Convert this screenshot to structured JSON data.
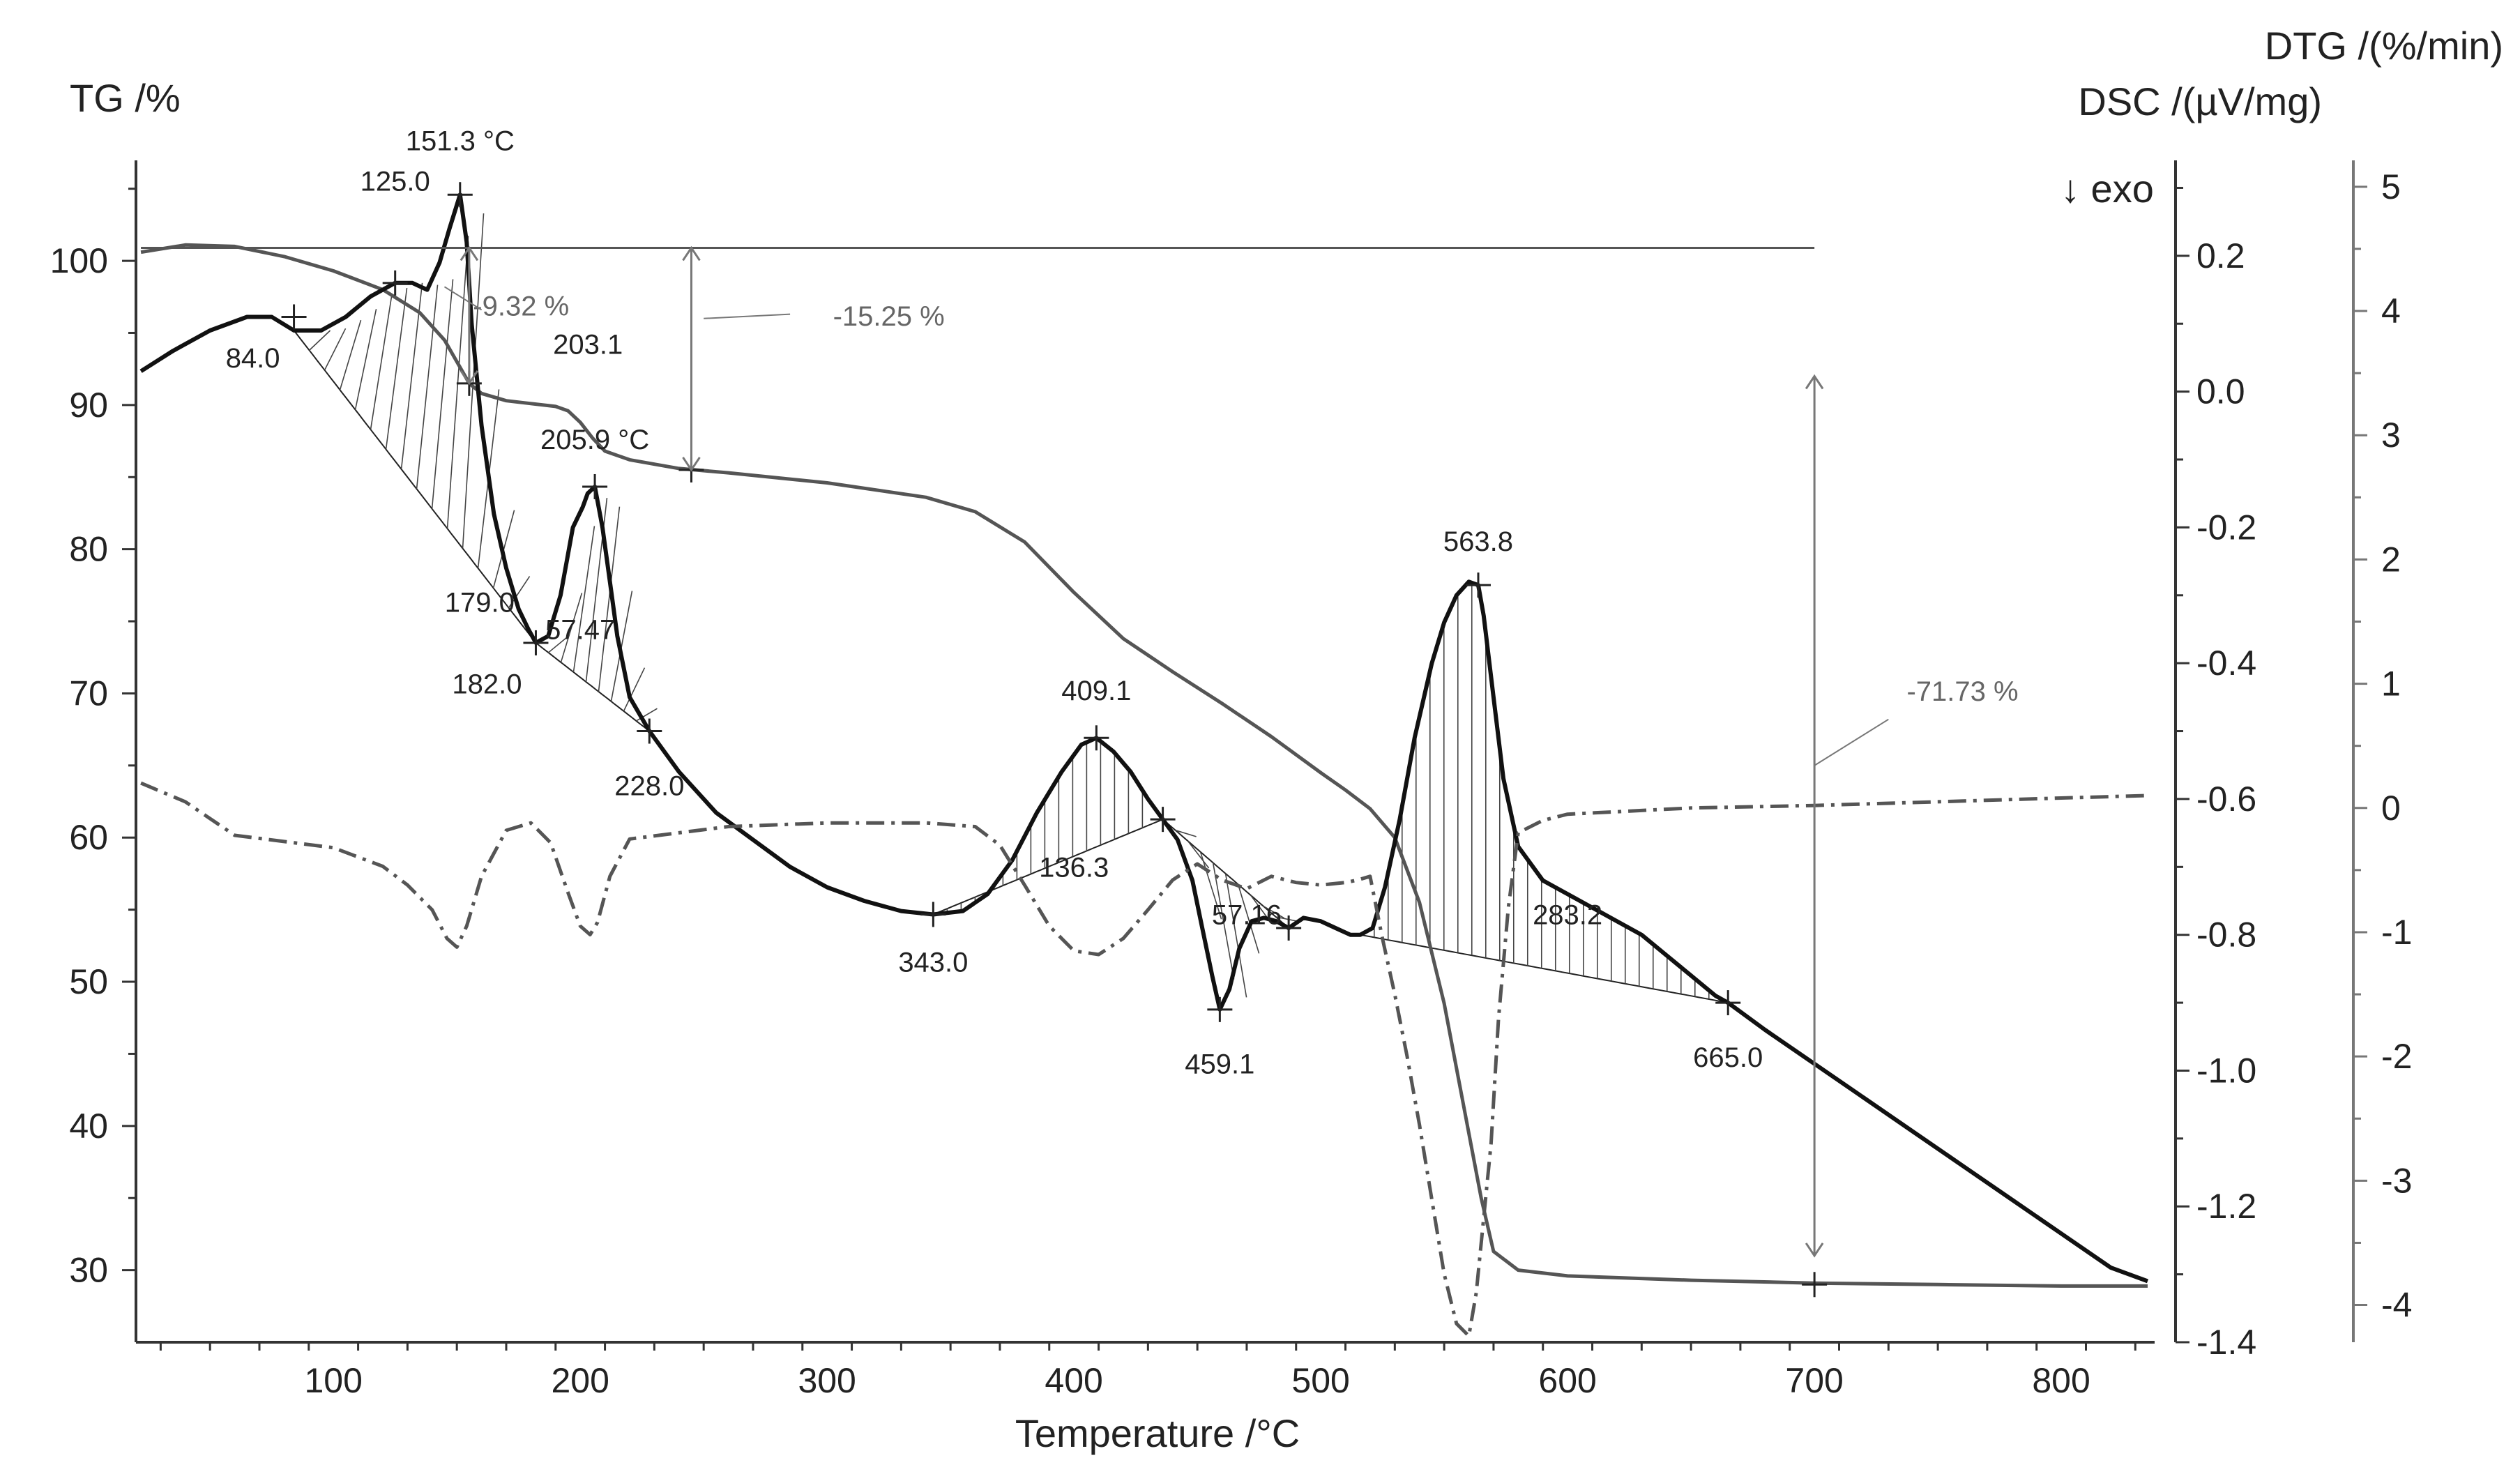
{
  "chart_data": {
    "type": "line",
    "title": "",
    "xlabel": "Temperature /°C",
    "ylabel_left": "TG /%",
    "ylabel_dsc": "DSC /(µV/mg)",
    "ylabel_dtg": "DTG /(%/min)",
    "exo_label": "↓ exo",
    "xlim": [
      20,
      835
    ],
    "ylim_tg": [
      25,
      106
    ],
    "ylim_dsc": [
      -1.4,
      0.32
    ],
    "ylim_dtg": [
      -4.3,
      5.1
    ],
    "x_ticks": [
      100,
      200,
      300,
      400,
      500,
      600,
      700,
      800
    ],
    "tg_ticks": [
      30,
      40,
      50,
      60,
      70,
      80,
      90,
      100
    ],
    "dsc_ticks": [
      0.2,
      0.0,
      -0.2,
      -0.4,
      -0.6,
      -0.8,
      -1.0,
      -1.2,
      -1.4
    ],
    "dsc_tick_labels": [
      "0.2",
      "0.0",
      "-0.2",
      "-0.4",
      "-0.6",
      "-0.8",
      "-1.0",
      "-1.2",
      "-1.4"
    ],
    "dtg_ticks": [
      5,
      4,
      3,
      2,
      1,
      0,
      -1,
      -2,
      -3,
      -4
    ],
    "dtg_tick_labels": [
      "5",
      "4",
      "3",
      "2",
      "1",
      "0",
      "-1",
      "-2",
      "-3",
      "-4"
    ],
    "series": [
      {
        "name": "TG",
        "axis": "tg",
        "color": "#555555",
        "style": "solid",
        "x": [
          22,
          40,
          60,
          80,
          100,
          120,
          135,
          145,
          150,
          155,
          160,
          170,
          180,
          190,
          195,
          200,
          205,
          210,
          220,
          240,
          260,
          300,
          340,
          360,
          380,
          400,
          420,
          440,
          460,
          480,
          500,
          510,
          520,
          530,
          540,
          550,
          560,
          565,
          570,
          580,
          600,
          650,
          700,
          750,
          800,
          835
        ],
        "y": [
          100.6,
          101.1,
          101.0,
          100.3,
          99.3,
          98.0,
          96.4,
          94.5,
          93.0,
          91.5,
          90.8,
          90.3,
          90.1,
          89.9,
          89.6,
          88.8,
          87.7,
          86.8,
          86.2,
          85.6,
          85.3,
          84.6,
          83.6,
          82.6,
          80.5,
          77.0,
          73.8,
          71.5,
          69.3,
          67.0,
          64.5,
          63.3,
          62.0,
          60.0,
          55.5,
          48.5,
          39.5,
          35.0,
          31.3,
          30.0,
          29.6,
          29.3,
          29.1,
          29.0,
          28.9,
          28.9
        ]
      },
      {
        "name": "DSC",
        "axis": "dsc",
        "color": "#111111",
        "style": "solid",
        "x": [
          22,
          35,
          50,
          65,
          75,
          84,
          95,
          105,
          115,
          125,
          132,
          138,
          143,
          147,
          151.3,
          154,
          156,
          160,
          165,
          170,
          175,
          179,
          182,
          187,
          192,
          197,
          201,
          203,
          205.9,
          209,
          212,
          215,
          220,
          228,
          240,
          255,
          270,
          285,
          300,
          315,
          330,
          343,
          355,
          365,
          375,
          385,
          395,
          403,
          409.1,
          416,
          423,
          430,
          436,
          442,
          448,
          452,
          456,
          459.1,
          463,
          467,
          472,
          477,
          482,
          487,
          493,
          500,
          506,
          512,
          516,
          521,
          526,
          532,
          538,
          545,
          550,
          555,
          560,
          563.8,
          566,
          570,
          574,
          580,
          590,
          600,
          610,
          620,
          630,
          640,
          650,
          660,
          665,
          680,
          700,
          720,
          740,
          760,
          780,
          800,
          820,
          835
        ],
        "y": [
          0.03,
          0.06,
          0.09,
          0.11,
          0.11,
          0.09,
          0.09,
          0.11,
          0.14,
          0.16,
          0.16,
          0.15,
          0.19,
          0.24,
          0.29,
          0.22,
          0.1,
          -0.05,
          -0.18,
          -0.26,
          -0.32,
          -0.35,
          -0.37,
          -0.36,
          -0.3,
          -0.2,
          -0.17,
          -0.15,
          -0.14,
          -0.2,
          -0.28,
          -0.36,
          -0.45,
          -0.5,
          -0.56,
          -0.62,
          -0.66,
          -0.7,
          -0.73,
          -0.75,
          -0.765,
          -0.77,
          -0.765,
          -0.74,
          -0.69,
          -0.62,
          -0.56,
          -0.52,
          -0.51,
          -0.53,
          -0.56,
          -0.6,
          -0.63,
          -0.66,
          -0.72,
          -0.79,
          -0.86,
          -0.91,
          -0.88,
          -0.82,
          -0.78,
          -0.775,
          -0.78,
          -0.79,
          -0.775,
          -0.78,
          -0.79,
          -0.8,
          -0.8,
          -0.79,
          -0.73,
          -0.63,
          -0.51,
          -0.4,
          -0.34,
          -0.3,
          -0.28,
          -0.285,
          -0.33,
          -0.45,
          -0.57,
          -0.67,
          -0.72,
          -0.74,
          -0.76,
          -0.78,
          -0.8,
          -0.83,
          -0.86,
          -0.89,
          -0.9,
          -0.94,
          -0.99,
          -1.04,
          -1.09,
          -1.14,
          -1.19,
          -1.24,
          -1.29,
          -1.31
        ]
      },
      {
        "name": "DTG",
        "axis": "dtg",
        "color": "#555555",
        "style": "dashdot",
        "x": [
          22,
          40,
          60,
          80,
          100,
          120,
          130,
          140,
          146,
          150,
          154,
          160,
          170,
          180,
          188,
          195,
          200,
          204,
          207,
          212,
          220,
          240,
          260,
          300,
          340,
          360,
          370,
          380,
          390,
          400,
          410,
          420,
          430,
          440,
          450,
          460,
          470,
          480,
          490,
          500,
          510,
          515,
          520,
          525,
          530,
          535,
          540,
          545,
          550,
          555,
          560,
          563,
          566,
          569,
          572,
          576,
          580,
          590,
          600,
          650,
          700,
          750,
          800,
          835
        ],
        "y": [
          0.2,
          0.05,
          -0.22,
          -0.27,
          -0.32,
          -0.47,
          -0.62,
          -0.82,
          -1.05,
          -1.12,
          -0.95,
          -0.55,
          -0.18,
          -0.12,
          -0.28,
          -0.68,
          -0.95,
          -1.02,
          -0.92,
          -0.55,
          -0.25,
          -0.2,
          -0.15,
          -0.12,
          -0.12,
          -0.15,
          -0.3,
          -0.62,
          -0.95,
          -1.15,
          -1.18,
          -1.05,
          -0.82,
          -0.58,
          -0.45,
          -0.58,
          -0.65,
          -0.55,
          -0.6,
          -0.62,
          -0.6,
          -0.58,
          -0.55,
          -1.05,
          -1.5,
          -2.0,
          -2.55,
          -3.15,
          -3.75,
          -4.15,
          -4.25,
          -3.9,
          -3.3,
          -2.7,
          -1.7,
          -0.8,
          -0.2,
          -0.1,
          -0.05,
          0.0,
          0.02,
          0.05,
          0.08,
          0.1
        ]
      }
    ],
    "peak_labels": [
      {
        "text": "151.3 °C",
        "x": 151.3
      },
      {
        "text": "125.0",
        "x": 125.0
      },
      {
        "text": "84.0",
        "x": 84.0
      },
      {
        "text": "203.1",
        "x": 203.1
      },
      {
        "text": "205.9 °C",
        "x": 205.9
      },
      {
        "text": "179.0",
        "x": 179.0
      },
      {
        "text": "182.0",
        "x": 182.0
      },
      {
        "text": "57.47",
        "x": 200
      },
      {
        "text": "228.0",
        "x": 228.0
      },
      {
        "text": "409.1",
        "x": 409.1
      },
      {
        "text": "136.3",
        "x": 400
      },
      {
        "text": "57.16",
        "x": 470
      },
      {
        "text": "343.0",
        "x": 343.0
      },
      {
        "text": "459.1",
        "x": 459.1
      },
      {
        "text": "563.8",
        "x": 563.8
      },
      {
        "text": "283.2",
        "x": 600
      },
      {
        "text": "665.0",
        "x": 665.0
      }
    ],
    "mass_loss_labels": [
      {
        "text": "-9.32 %"
      },
      {
        "text": "-15.25 %"
      },
      {
        "text": "-71.73 %"
      }
    ]
  }
}
